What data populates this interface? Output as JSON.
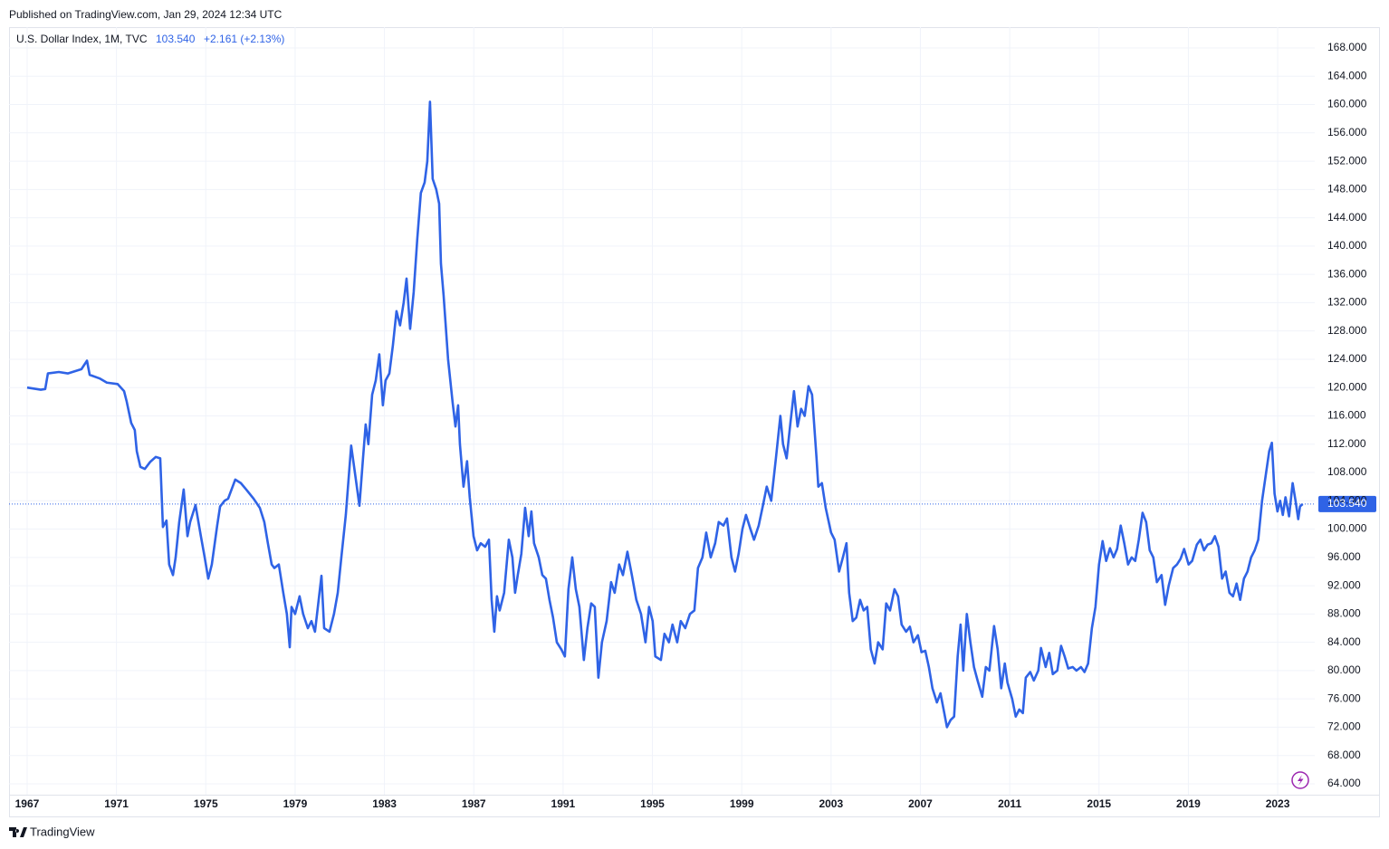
{
  "published": "Published on TradingView.com, Jan 29, 2024 12:34 UTC",
  "footer": "TradingView",
  "chart_data": {
    "type": "line",
    "title": "U.S. Dollar Index, 1M, TVC",
    "last": {
      "value": 103.54,
      "label": "103.540"
    },
    "change": "+2.161 (+2.13%)",
    "color": "#2f63e6",
    "grid": true,
    "xlim": [
      1966.19,
      2024.66
    ],
    "ylim": [
      62.46,
      169.92
    ],
    "xticks": [
      1967,
      1971,
      1975,
      1979,
      1983,
      1987,
      1991,
      1995,
      1999,
      2003,
      2007,
      2011,
      2015,
      2019,
      2023
    ],
    "yticks": [
      {
        "value": 64,
        "label": "64.000"
      },
      {
        "value": 68,
        "label": "68.000"
      },
      {
        "value": 72,
        "label": "72.000"
      },
      {
        "value": 76,
        "label": "76.000"
      },
      {
        "value": 80,
        "label": "80.000"
      },
      {
        "value": 84,
        "label": "84.000"
      },
      {
        "value": 88,
        "label": "88.000"
      },
      {
        "value": 92,
        "label": "92.000"
      },
      {
        "value": 96,
        "label": "96.000"
      },
      {
        "value": 100,
        "label": "100.000"
      },
      {
        "value": 104,
        "label": "104.000"
      },
      {
        "value": 108,
        "label": "108.000"
      },
      {
        "value": 112,
        "label": "112.000"
      },
      {
        "value": 116,
        "label": "116.000"
      },
      {
        "value": 120,
        "label": "120.000"
      },
      {
        "value": 124,
        "label": "124.000"
      },
      {
        "value": 128,
        "label": "128.000"
      },
      {
        "value": 132,
        "label": "132.000"
      },
      {
        "value": 136,
        "label": "136.000"
      },
      {
        "value": 140,
        "label": "140.000"
      },
      {
        "value": 144,
        "label": "144.000"
      },
      {
        "value": 148,
        "label": "148.000"
      },
      {
        "value": 152,
        "label": "152.000"
      },
      {
        "value": 156,
        "label": "156.000"
      },
      {
        "value": 160,
        "label": "160.000"
      },
      {
        "value": 164,
        "label": "164.000"
      },
      {
        "value": 168,
        "label": "168.000"
      }
    ],
    "x": [
      1967,
      1967.61,
      1967.81,
      1967.93,
      1968.42,
      1968.82,
      1969.43,
      1969.68,
      1969.8,
      1970.24,
      1970.57,
      1971.05,
      1971.34,
      1971.46,
      1971.66,
      1971.82,
      1971.91,
      1972.07,
      1972.27,
      1972.51,
      1972.76,
      1972.96,
      1973.08,
      1973.24,
      1973.36,
      1973.53,
      1973.65,
      1973.81,
      1974.01,
      1974.18,
      1974.3,
      1974.54,
      1974.78,
      1974.95,
      1975.11,
      1975.27,
      1975.51,
      1975.64,
      1975.84,
      1976,
      1976.32,
      1976.57,
      1976.81,
      1977.14,
      1977.42,
      1977.62,
      1977.78,
      1977.95,
      1978.07,
      1978.27,
      1978.47,
      1978.63,
      1978.76,
      1978.84,
      1979,
      1979.2,
      1979.36,
      1979.57,
      1979.73,
      1979.89,
      1980.18,
      1980.3,
      1980.54,
      1980.74,
      1980.91,
      1981.07,
      1981.27,
      1981.51,
      1981.72,
      1981.88,
      1982.04,
      1982.16,
      1982.28,
      1982.45,
      1982.61,
      1982.77,
      1982.93,
      1983.05,
      1983.22,
      1983.38,
      1983.54,
      1983.7,
      1983.86,
      1983.99,
      1984.15,
      1984.31,
      1984.47,
      1984.63,
      1984.8,
      1984.92,
      1985.04,
      1985.16,
      1985.32,
      1985.45,
      1985.53,
      1985.65,
      1985.85,
      1986.05,
      1986.18,
      1986.3,
      1986.38,
      1986.54,
      1986.7,
      1986.82,
      1986.99,
      1987.15,
      1987.31,
      1987.51,
      1987.68,
      1987.8,
      1987.92,
      1988.04,
      1988.16,
      1988.36,
      1988.57,
      1988.73,
      1988.85,
      1988.97,
      1989.13,
      1989.3,
      1989.46,
      1989.58,
      1989.7,
      1989.91,
      1990.07,
      1990.23,
      1990.39,
      1990.55,
      1990.72,
      1990.92,
      1991.08,
      1991.24,
      1991.41,
      1991.57,
      1991.73,
      1991.93,
      1992.09,
      1992.26,
      1992.42,
      1992.58,
      1992.74,
      1992.95,
      1993.15,
      1993.31,
      1993.51,
      1993.68,
      1993.88,
      1994.08,
      1994.28,
      1994.49,
      1994.69,
      1994.85,
      1995.01,
      1995.13,
      1995.38,
      1995.54,
      1995.74,
      1995.9,
      1996.11,
      1996.27,
      1996.47,
      1996.68,
      1996.88,
      1997.04,
      1997.24,
      1997.41,
      1997.61,
      1997.81,
      1997.97,
      1998.18,
      1998.34,
      1998.54,
      1998.7,
      1998.86,
      1999.03,
      1999.19,
      1999.39,
      1999.55,
      1999.76,
      1999.96,
      2000.12,
      2000.32,
      2000.53,
      2000.73,
      2000.85,
      2001.01,
      2001.18,
      2001.34,
      2001.5,
      2001.66,
      2001.82,
      2001.99,
      2002.15,
      2002.35,
      2002.43,
      2002.59,
      2002.76,
      2003,
      2003.16,
      2003.36,
      2003.53,
      2003.69,
      2003.81,
      2003.97,
      2004.13,
      2004.3,
      2004.46,
      2004.62,
      2004.78,
      2004.95,
      2005.11,
      2005.31,
      2005.47,
      2005.64,
      2005.84,
      2006,
      2006.16,
      2006.36,
      2006.53,
      2006.69,
      2006.89,
      2007.05,
      2007.22,
      2007.38,
      2007.54,
      2007.74,
      2007.9,
      2008.07,
      2008.19,
      2008.35,
      2008.51,
      2008.67,
      2008.8,
      2008.92,
      2009.08,
      2009.24,
      2009.4,
      2009.57,
      2009.77,
      2009.93,
      2010.09,
      2010.3,
      2010.46,
      2010.62,
      2010.78,
      2010.9,
      2011.11,
      2011.27,
      2011.43,
      2011.59,
      2011.72,
      2011.92,
      2012.08,
      2012.28,
      2012.4,
      2012.61,
      2012.77,
      2012.93,
      2013.13,
      2013.3,
      2013.46,
      2013.62,
      2013.82,
      2013.99,
      2014.19,
      2014.35,
      2014.51,
      2014.68,
      2014.84,
      2015,
      2015.16,
      2015.32,
      2015.49,
      2015.65,
      2015.81,
      2015.97,
      2016.13,
      2016.3,
      2016.46,
      2016.62,
      2016.78,
      2016.95,
      2017.11,
      2017.27,
      2017.43,
      2017.59,
      2017.8,
      2017.96,
      2018.12,
      2018.32,
      2018.49,
      2018.65,
      2018.81,
      2019.01,
      2019.17,
      2019.38,
      2019.54,
      2019.7,
      2019.86,
      2020.03,
      2020.19,
      2020.35,
      2020.51,
      2020.67,
      2020.84,
      2021,
      2021.16,
      2021.32,
      2021.49,
      2021.65,
      2021.81,
      2021.97,
      2022.13,
      2022.3,
      2022.46,
      2022.62,
      2022.74,
      2022.86,
      2022.99,
      2023.11,
      2023.23,
      2023.35,
      2023.51,
      2023.67,
      2023.8,
      2023.92,
      2024,
      2024.12
    ],
    "values": [
      120,
      119.7,
      119.8,
      122,
      122.2,
      122,
      122.6,
      123.8,
      121.8,
      121.3,
      120.7,
      120.5,
      119.5,
      118,
      115,
      114,
      111,
      108.8,
      108.5,
      109.5,
      110.2,
      110,
      100.3,
      101.2,
      95,
      93.5,
      96,
      101,
      105.6,
      99,
      101,
      103.4,
      99,
      96,
      93,
      95,
      100.5,
      103.2,
      104,
      104.3,
      107,
      106.5,
      105.6,
      104.3,
      103,
      101,
      98,
      95,
      94.5,
      95,
      91,
      88,
      83.3,
      89,
      88,
      90.5,
      88,
      86,
      87,
      85.5,
      93.4,
      86,
      85.5,
      88,
      91,
      96,
      102,
      111.8,
      107,
      103.3,
      110,
      114.8,
      112,
      119,
      121,
      124.7,
      117.5,
      121,
      122,
      126,
      130.8,
      128.8,
      132,
      135.4,
      128.3,
      133.5,
      141,
      147.5,
      149,
      152,
      160.4,
      149.5,
      148,
      146,
      137.5,
      133,
      124,
      118,
      114.5,
      117.5,
      112,
      106,
      109.6,
      104.5,
      99,
      97,
      98,
      97.5,
      98.5,
      90,
      85.5,
      90.5,
      88.5,
      91,
      98.5,
      96,
      91,
      93.5,
      96.5,
      103,
      99,
      102.5,
      98,
      96,
      93.5,
      93,
      90,
      87.5,
      84,
      83,
      82,
      91.5,
      96,
      91.5,
      89,
      81.5,
      86,
      89.5,
      89,
      79,
      84,
      87,
      92.5,
      91,
      95,
      93.5,
      96.8,
      93.5,
      90,
      88,
      84,
      89,
      87,
      82,
      81.5,
      85.2,
      84,
      86.5,
      84,
      87,
      86,
      88,
      88.5,
      94.5,
      96,
      99.5,
      96,
      98,
      101,
      100.5,
      101.5,
      96,
      94,
      96.5,
      100,
      102,
      100,
      98.5,
      100.5,
      103.5,
      106,
      104,
      110,
      116,
      112,
      110,
      115,
      119.5,
      114.5,
      117,
      116,
      120.2,
      119,
      110,
      106,
      106.5,
      103,
      99.5,
      98.5,
      94,
      96,
      98,
      91,
      87,
      87.5,
      90,
      88.5,
      89,
      83,
      81,
      84,
      83,
      89.5,
      88.5,
      91.5,
      90.5,
      86.5,
      85.5,
      86.2,
      84,
      85,
      82.6,
      82.8,
      80.5,
      77.5,
      75.5,
      76.8,
      74,
      72,
      73,
      73.5,
      82,
      86.5,
      80,
      88,
      84,
      80.5,
      78.5,
      76.3,
      80.5,
      80,
      86.3,
      83,
      77.5,
      81,
      78.3,
      76,
      73.5,
      74.5,
      74,
      79,
      79.8,
      78.6,
      80,
      83.2,
      80.5,
      82.5,
      79.5,
      80,
      83.5,
      82,
      80.3,
      80.5,
      80,
      80.5,
      79.8,
      81,
      86,
      89,
      95,
      98.3,
      95.5,
      97.3,
      96,
      97.2,
      100.5,
      98,
      95,
      96,
      95.5,
      98.5,
      102.3,
      101,
      97,
      96,
      92.5,
      93.5,
      89.3,
      92,
      94.5,
      95,
      95.8,
      97.2,
      95,
      95.5,
      97.8,
      98.5,
      97,
      97.8,
      98,
      99,
      97.5,
      93,
      94,
      91,
      90.5,
      92.3,
      90,
      93,
      94,
      96,
      97,
      98.5,
      104,
      107.5,
      111,
      112.2,
      105,
      102.5,
      104,
      102,
      104.5,
      101.8,
      106.5,
      104,
      101.4,
      103.2,
      103.54
    ]
  }
}
